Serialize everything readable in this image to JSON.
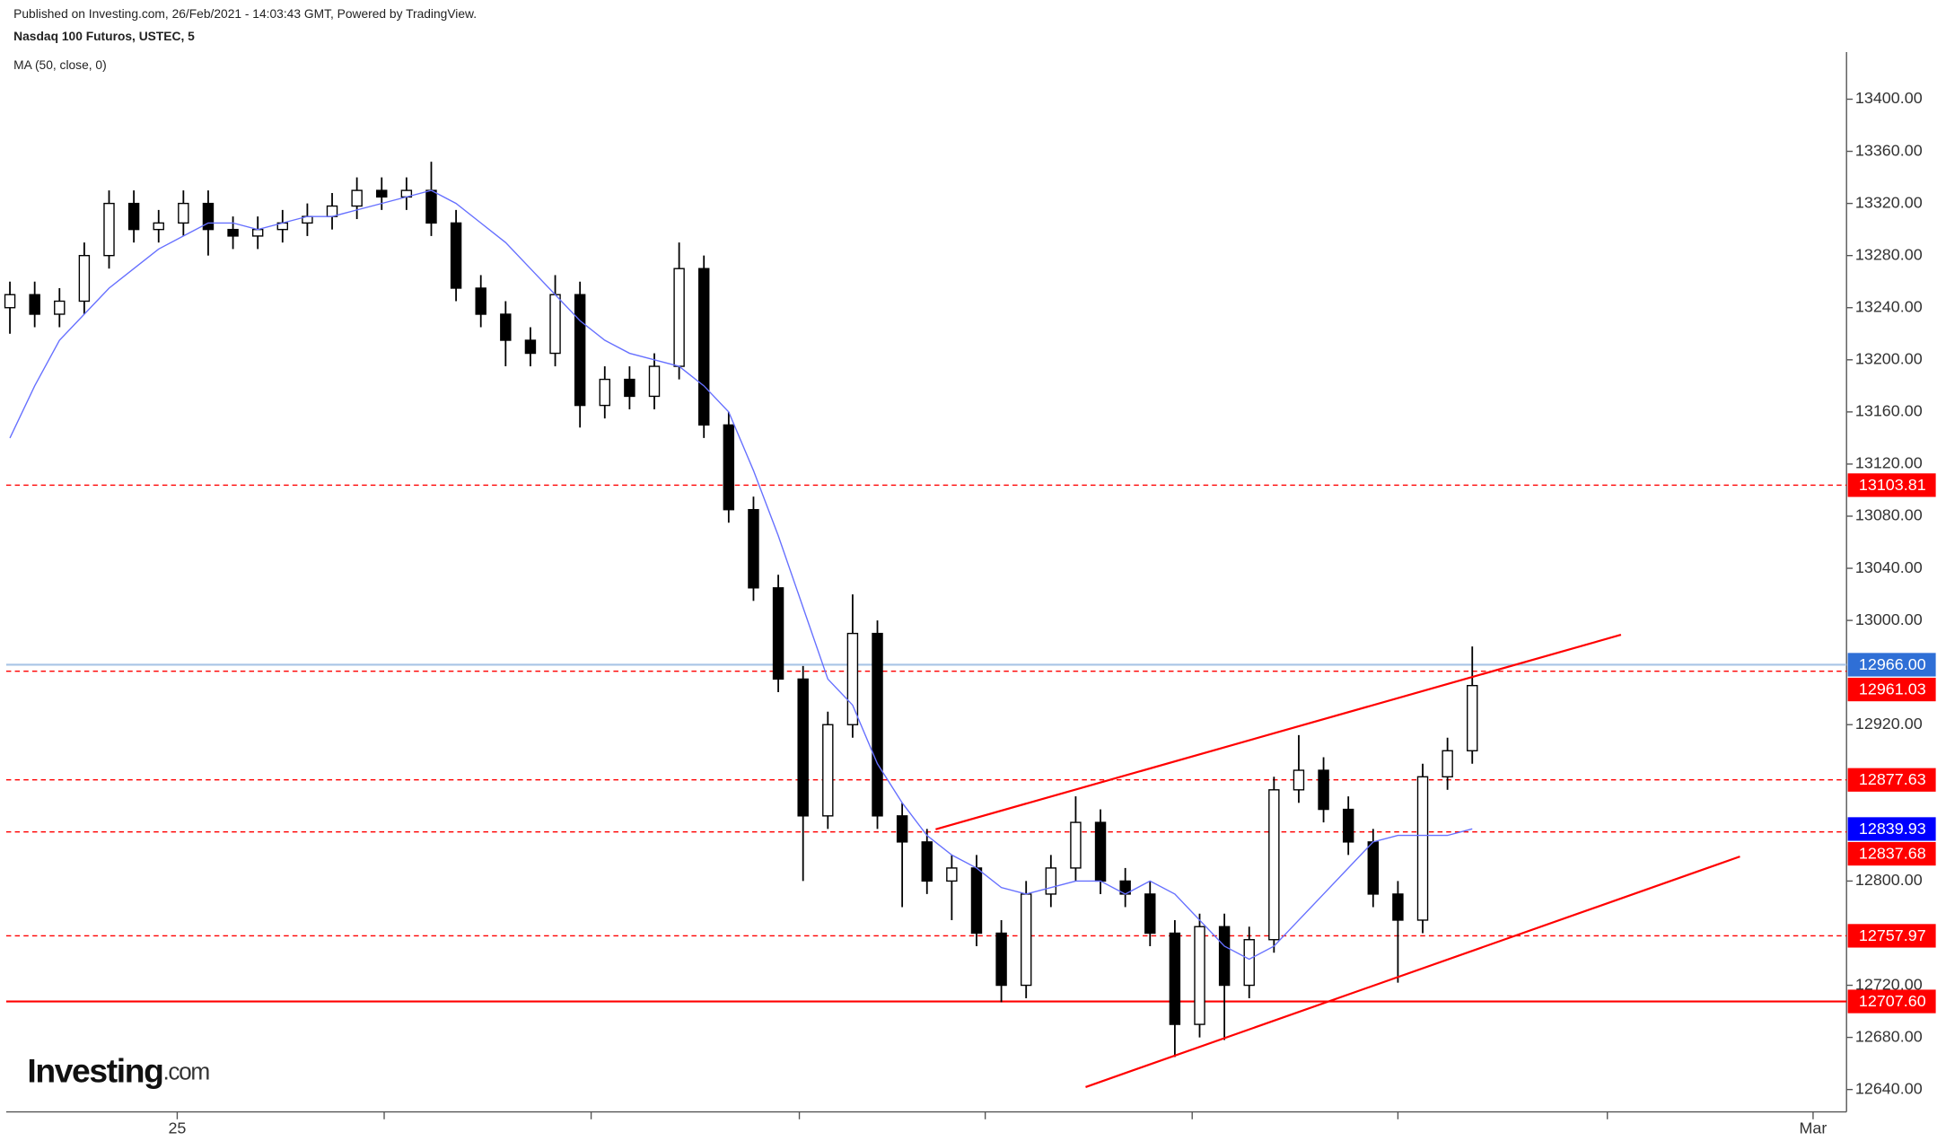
{
  "header": {
    "published": "Published on Investing.com, 26/Feb/2021 - 14:03:43 GMT, Powered by TradingView.",
    "symbol": "Nasdaq 100 Futuros, USTEC, 5",
    "indicator": "MA (50, close, 0)"
  },
  "logo": {
    "brand": "Investing",
    "suffix": ".com"
  },
  "chart_data": {
    "type": "candlestick",
    "xlim": [
      -0.15,
      74.1
    ],
    "ylim": [
      12625,
      13445
    ],
    "xticks": [
      {
        "value": 6.75,
        "label": "25"
      },
      {
        "value": 72.75,
        "label": "Mar"
      }
    ],
    "yticks": [
      {
        "value": 13400,
        "label": "13400.00"
      },
      {
        "value": 13360,
        "label": "13360.00"
      },
      {
        "value": 13320,
        "label": "13320.00"
      },
      {
        "value": 13280,
        "label": "13280.00"
      },
      {
        "value": 13240,
        "label": "13240.00"
      },
      {
        "value": 13200,
        "label": "13200.00"
      },
      {
        "value": 13160,
        "label": "13160.00"
      },
      {
        "value": 13120,
        "label": "13120.00"
      },
      {
        "value": 13080,
        "label": "13080.00"
      },
      {
        "value": 13040,
        "label": "13040.00"
      },
      {
        "value": 13000,
        "label": "13000.00"
      },
      {
        "value": 12920,
        "label": "12920.00"
      },
      {
        "value": 12800,
        "label": "12800.00"
      },
      {
        "value": 12720,
        "label": "12720.00"
      },
      {
        "value": 12680,
        "label": "12680.00"
      },
      {
        "value": 12640,
        "label": "12640.00"
      }
    ],
    "up_color": "#ffffff",
    "down_color": "#000000",
    "wick_color": "#000000",
    "open": [
      13240,
      13250,
      13235,
      13245,
      13280,
      13320,
      13300,
      13305,
      13320,
      13300,
      13295,
      13300,
      13305,
      13310,
      13318,
      13330,
      13325,
      13330,
      13305,
      13255,
      13235,
      13215,
      13205,
      13250,
      13165,
      13185,
      13172,
      13195,
      13270,
      13150,
      13085,
      13025,
      12955,
      12850,
      12920,
      12990,
      12850,
      12830,
      12800,
      12810,
      12760,
      12720,
      12790,
      12810,
      12845,
      12800,
      12790,
      12760,
      12690,
      12765,
      12720,
      12755,
      12870,
      12885,
      12855,
      12830,
      12790,
      12770,
      12880,
      12900
    ],
    "high": [
      13260,
      13260,
      13255,
      13290,
      13330,
      13330,
      13315,
      13330,
      13330,
      13310,
      13310,
      13315,
      13320,
      13328,
      13340,
      13340,
      13340,
      13352,
      13315,
      13265,
      13245,
      13225,
      13265,
      13260,
      13195,
      13195,
      13205,
      13290,
      13280,
      13160,
      13095,
      13035,
      12965,
      12930,
      13020,
      13000,
      12860,
      12840,
      12820,
      12820,
      12770,
      12800,
      12820,
      12865,
      12855,
      12810,
      12800,
      12770,
      12775,
      12775,
      12765,
      12880,
      12912,
      12895,
      12865,
      12840,
      12800,
      12890,
      12910,
      12980
    ],
    "low": [
      13220,
      13225,
      13225,
      13235,
      13270,
      13290,
      13290,
      13295,
      13280,
      13285,
      13285,
      13290,
      13295,
      13300,
      13308,
      13315,
      13315,
      13295,
      13245,
      13225,
      13195,
      13195,
      13195,
      13148,
      13155,
      13162,
      13162,
      13185,
      13140,
      13075,
      13015,
      12945,
      12800,
      12840,
      12910,
      12840,
      12780,
      12790,
      12770,
      12750,
      12707,
      12710,
      12780,
      12800,
      12790,
      12780,
      12750,
      12665,
      12680,
      12678,
      12710,
      12745,
      12860,
      12845,
      12820,
      12780,
      12722,
      12760,
      12870,
      12890
    ],
    "close": [
      13250,
      13235,
      13245,
      13280,
      13320,
      13300,
      13305,
      13320,
      13300,
      13295,
      13300,
      13305,
      13310,
      13318,
      13330,
      13325,
      13330,
      13305,
      13255,
      13235,
      13215,
      13205,
      13250,
      13165,
      13185,
      13172,
      13195,
      13270,
      13150,
      13085,
      13025,
      12955,
      12850,
      12920,
      12990,
      12850,
      12830,
      12800,
      12810,
      12760,
      12720,
      12790,
      12810,
      12845,
      12800,
      12790,
      12760,
      12690,
      12765,
      12720,
      12755,
      12870,
      12885,
      12855,
      12830,
      12790,
      12770,
      12880,
      12900,
      12950
    ],
    "ma": {
      "color": "#6670ff",
      "values": [
        13140,
        13180,
        13215,
        13235,
        13255,
        13270,
        13285,
        13295,
        13305,
        13305,
        13300,
        13305,
        13310,
        13310,
        13315,
        13320,
        13325,
        13330,
        13320,
        13305,
        13290,
        13270,
        13250,
        13230,
        13215,
        13205,
        13200,
        13195,
        13180,
        13160,
        13115,
        13065,
        13010,
        12955,
        12935,
        12890,
        12860,
        12835,
        12820,
        12810,
        12795,
        12790,
        12795,
        12800,
        12800,
        12790,
        12800,
        12790,
        12770,
        12750,
        12740,
        12750,
        12770,
        12790,
        12810,
        12830,
        12835,
        12835,
        12835,
        12840
      ]
    },
    "levels": [
      {
        "value": 13103.81,
        "style": "dashed",
        "color": "#ff0000"
      },
      {
        "value": 12966,
        "label": "12966.00",
        "style": "solid",
        "color": "#2f6fd6",
        "line_color": "#a8c4e6"
      },
      {
        "value": 12961.03,
        "style": "dashed",
        "color": "#ff0000"
      },
      {
        "value": 12877.63,
        "style": "dashed",
        "color": "#ff0000"
      },
      {
        "value": 12839.93,
        "style": "none",
        "color": "#0000ff"
      },
      {
        "value": 12837.68,
        "style": "dashed",
        "color": "#ff0000"
      },
      {
        "value": 12757.97,
        "style": "dashed",
        "color": "#ff0000"
      },
      {
        "value": 12707.6,
        "label": "12707.60",
        "style": "solid",
        "color": "#ff0000"
      }
    ],
    "trendlines": [
      {
        "color": "#ff0000",
        "x": [
          37.35,
          65
        ],
        "y": [
          12839.7,
          12989
        ]
      },
      {
        "color": "#ff0000",
        "x": [
          43.4,
          69.8
        ],
        "y": [
          12641.9,
          12818.8
        ]
      }
    ]
  }
}
